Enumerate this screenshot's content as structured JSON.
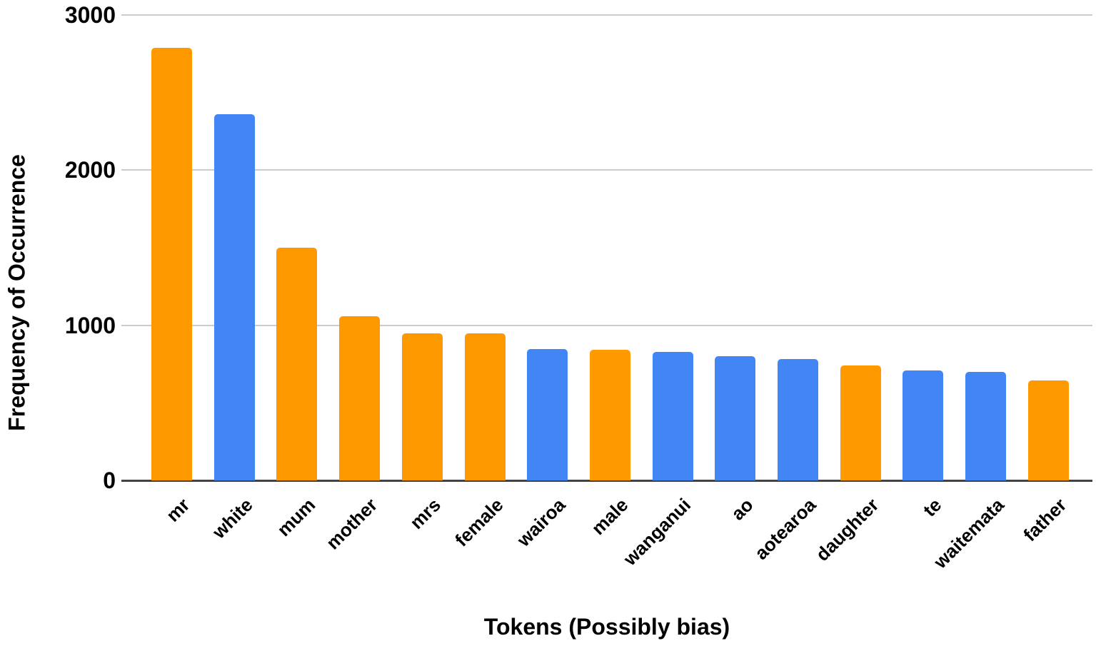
{
  "chart_data": {
    "type": "bar",
    "title": "",
    "xlabel": "Tokens (Possibly bias)",
    "ylabel": "Frequency of Occurrence",
    "categories": [
      "mr",
      "white",
      "mum",
      "mother",
      "mrs",
      "female",
      "wairoa",
      "male",
      "wanganui",
      "ao",
      "aotearoa",
      "daughter",
      "te",
      "waitemata",
      "father"
    ],
    "values": [
      2790,
      2360,
      1500,
      1060,
      950,
      950,
      845,
      840,
      830,
      800,
      780,
      740,
      710,
      700,
      645
    ],
    "bar_colors": [
      "orange",
      "blue",
      "orange",
      "orange",
      "orange",
      "orange",
      "blue",
      "orange",
      "blue",
      "blue",
      "blue",
      "orange",
      "blue",
      "blue",
      "orange"
    ],
    "palette": {
      "orange": "#FF9900",
      "blue": "#4285F4"
    },
    "yticks": [
      0,
      1000,
      2000,
      3000
    ],
    "ylim": [
      0,
      3000
    ],
    "grid": "horizontal-only",
    "legend": "none",
    "gridline_color": "#CCCCCC",
    "axis_line_color": "#424242",
    "text_color": "#000000",
    "background_color": "#FFFFFF"
  }
}
